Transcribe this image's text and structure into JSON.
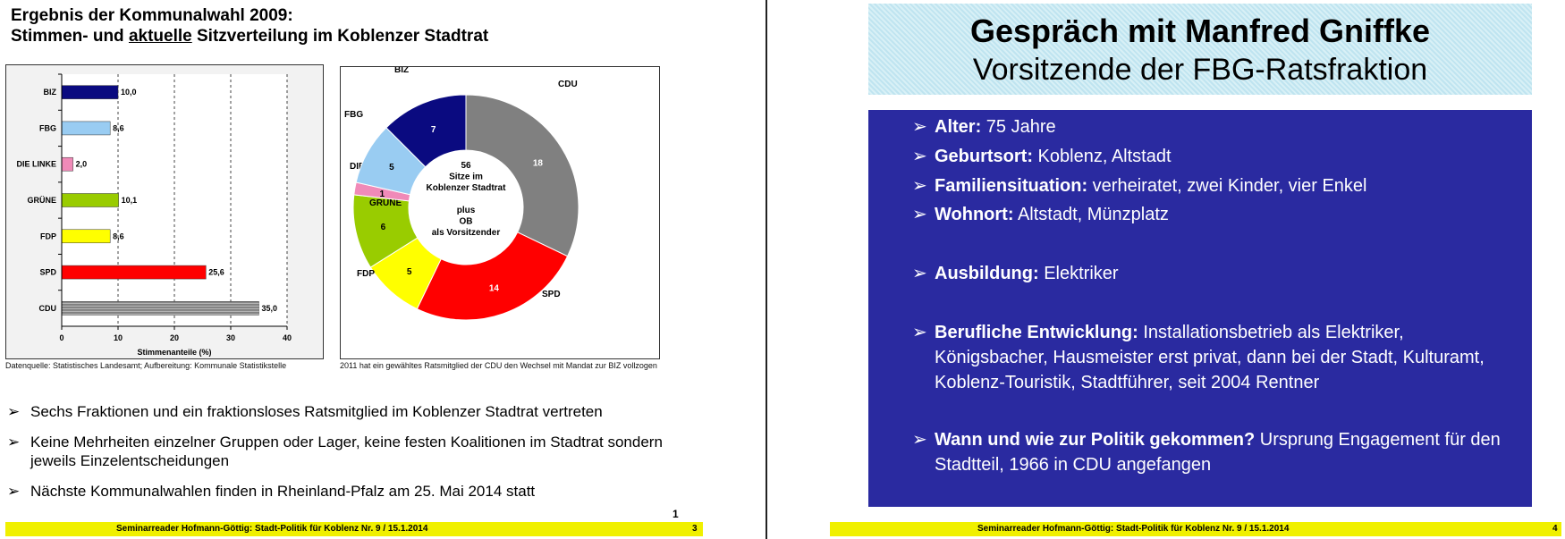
{
  "left": {
    "title_line1": "Ergebnis der Kommunalwahl 2009:",
    "title_pre": "Stimmen- und ",
    "title_under": "aktuelle",
    "title_post": " Sitzverteilung im Koblenzer Stadtrat",
    "bar_source": "Datenquelle: Statistisches Landesamt; Aufbereitung: Kommunale Statistikstelle",
    "donut_note": "2011 hat ein gewähltes Ratsmitglied der CDU den Wechsel mit Mandat zur BIZ vollzogen",
    "bullets": [
      "Sechs Fraktionen und ein fraktionsloses Ratsmitglied im Koblenzer Stadtrat vertreten",
      "Keine Mehrheiten einzelner Gruppen oder Lager, keine festen Koalitionen im Stadtrat sondern jeweils Einzelentscheidungen",
      "Nächste Kommunalwahlen finden in Rheinland-Pfalz am 25. Mai 2014 statt"
    ],
    "footer": "Seminarreader Hofmann-Göttig: Stadt-Politik für Koblenz Nr. 9 / 15.1.2014",
    "page_upper": "1",
    "page": "3"
  },
  "chart_data": [
    {
      "type": "bar",
      "orientation": "horizontal",
      "categories": [
        "BIZ",
        "FBG",
        "DIE LINKE",
        "GRÜNE",
        "FDP",
        "SPD",
        "CDU"
      ],
      "values": [
        10.0,
        8.6,
        2.0,
        10.1,
        8.6,
        25.6,
        35.0
      ],
      "value_labels": [
        "10,0",
        "8,6",
        "2,0",
        "10,1",
        "8,6",
        "25,6",
        "35,0"
      ],
      "colors": [
        "#0a0a80",
        "#99ccf2",
        "#f08ab8",
        "#99cc00",
        "#ffff00",
        "#ff0000",
        "#808080"
      ],
      "xlabel": "Stimmenanteile (%)",
      "xlim": [
        0,
        40
      ],
      "xticks": [
        "0",
        "10",
        "20",
        "30",
        "40"
      ],
      "grid": "dashed vertical"
    },
    {
      "type": "pie",
      "donut": true,
      "categories": [
        "CDU",
        "SPD",
        "FDP",
        "GRÜNE",
        "DIE LINKE",
        "FBG",
        "BIZ"
      ],
      "values": [
        18,
        14,
        5,
        6,
        1,
        5,
        7
      ],
      "colors": [
        "#808080",
        "#ff0000",
        "#ffff00",
        "#99cc00",
        "#f08ab8",
        "#99ccf2",
        "#0a0a80"
      ],
      "center_text": [
        "56",
        "Sitze im",
        "Koblenzer Stadtrat",
        "",
        "plus",
        "OB",
        "als Vorsitzender"
      ]
    }
  ],
  "right": {
    "title": "Gespräch mit Manfred Gniffke",
    "subtitle": "Vorsitzende der FBG-Ratsfraktion",
    "items": [
      {
        "label": "Alter:",
        "text": " 75 Jahre"
      },
      {
        "label": "Geburtsort:",
        "text": " Koblenz, Altstadt"
      },
      {
        "label": "Familiensituation:",
        "text": " verheiratet, zwei Kinder, vier Enkel"
      },
      {
        "label": "Wohnort:",
        "text": " Altstadt, Münzplatz"
      },
      {
        "label": "Ausbildung:",
        "text": " Elektriker"
      },
      {
        "label": "Berufliche Entwicklung:",
        "text": " Installationsbetrieb als Elektriker, Königsbacher, Hausmeister erst privat, dann bei der Stadt, Kulturamt, Koblenz-Touristik, Stadtführer, seit 2004 Rentner"
      },
      {
        "label": "Wann und wie zur Politik gekommen?",
        "text": " Ursprung Engagement für den Stadtteil, 1966 in CDU angefangen"
      }
    ],
    "footer": "Seminarreader Hofmann-Göttig: Stadt-Politik für Koblenz Nr. 9 / 15.1.2014",
    "page": "4"
  },
  "bullet_glyph": "➢"
}
